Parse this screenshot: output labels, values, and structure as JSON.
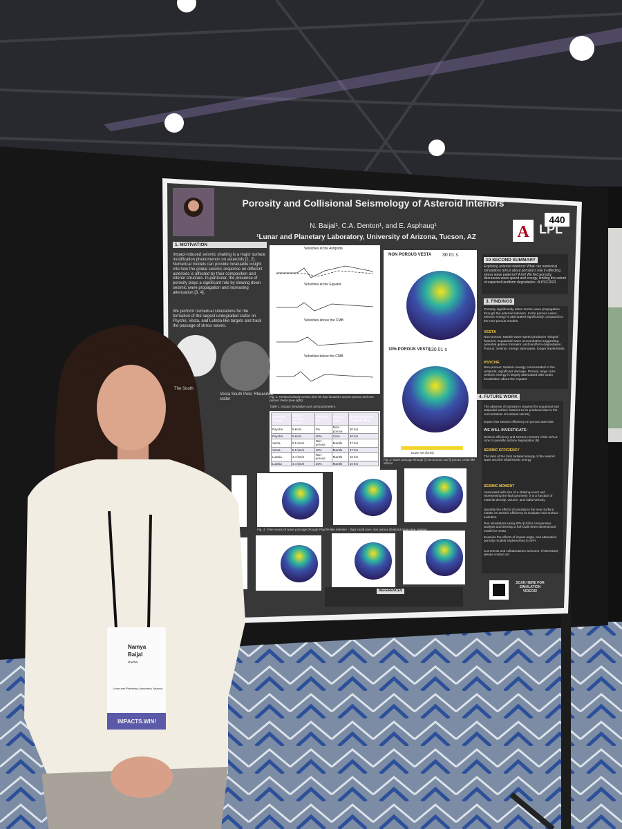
{
  "poster": {
    "number": "440",
    "title": "Porosity and Collisional Seismology of Asteroid Interiors",
    "authors": "N. Baijal¹, C.A. Denton¹, and E. Asphaug¹",
    "affiliation": "¹Lunar and Planetary Laboratory, University of Arizona, Tucson, AZ",
    "logo": "LPL",
    "motivation": {
      "heading": "1. MOTIVATION",
      "text": [
        "Impact-induced seismic shaking is a major surface modification phenomenon on asteroids [1, 2]. Numerical models can provide invaluable insight into how the global seismic response on different asteroids is affected by their composition and interior structure. In particular, the presence of porosity plays a significant role by slowing down seismic wave propagation and increasing attenuation [3, 4].",
        "We perform numerical simulations for the formation of the largest undegraded crater on Psyche, Vesta, and Lutetia-like targets and track the passage of stress waves."
      ]
    },
    "image_captions": [
      "The South",
      "Vesta South Pole: Rheasilvia crater"
    ],
    "charts": {
      "titles": [
        "Velocities at the Antipode",
        "Velocities at the Equator",
        "Velocities above the CMB",
        "Velocities below the CMB"
      ],
      "caption": "Fig. 1: Vertical velocity versus time for four locations across porous and non-porous Vesta (see right)."
    },
    "simulation": {
      "panels": [
        {
          "label": "NON POROUS VESTA",
          "time": "30.01 s"
        },
        {
          "label": "10% POROUS VESTA",
          "time": "130.01 s"
        }
      ],
      "colorbar": "Down  Vel (km/s)",
      "caption": "Fig. 2: Wave passage through (i) non-porous and ii) porous Vesta-like interior"
    },
    "table": {
      "caption": "Table 1: Impact simulation runs and parameters.",
      "header": [
        "Asteroid /Target",
        "Impact velocity (km/s)",
        "Porosity (%)",
        "Porous layer",
        "Dunite impactor diameter (km)"
      ],
      "rows": [
        [
          "Psyche",
          "5 km/s",
          "0%",
          "Non-porous",
          "30 km"
        ],
        [
          "Psyche",
          "5 km/s",
          "40%",
          "Core",
          "30 km"
        ],
        [
          "Vesta",
          "5.5 km/s",
          "Non-porous",
          "Mantle",
          "37 km"
        ],
        [
          "Vesta",
          "5.5 km/s",
          "10%",
          "Mantle",
          "37 km"
        ],
        [
          "Lutetia",
          "4.4 km/s",
          "Non-porous",
          "Mantle",
          "10 km"
        ],
        [
          "Lutetia",
          "4.4 km/s",
          "10%",
          "Mantle",
          "10 km"
        ]
      ]
    },
    "fig3_caption": "Fig. 3: Time series of wave passage through Psyche-like interiors - (top) small core, non porous (bottom) large core, porous",
    "summary": {
      "heading": "10 SECOND SUMMARY",
      "text": "Exploring asteroid interiors! What can numerical simulations tell us about porosity's role in affecting stress wave patterns? A lot! We find porosity decreases wave speed and energy, limiting the extent of expected landform degradation. #LPSC2023"
    },
    "findings": {
      "heading": "3. FINDINGS",
      "intro": "Porosity significantly alters stress wave propagation through the asteroid interiors. In the porous cases, seismic energy is attenuated significantly compared to the non-porous models.",
      "vesta_heading": "VESTA",
      "vesta": "Non-porous: Mantle wave speed produces 'winged' features. Equatorial wave accumulation suggesting potential graben formation and landform degradation. Porous: Seismic energy attenuates, longer travel-times",
      "psyche_heading": "PSYCHE",
      "psyche": "Non-porous: Seismic energy concentrated to the antipode, significant damage. Porous, large core: Seismic energy is largely attenuated with strain localization about the equator"
    },
    "future": {
      "heading": "4. FUTURE WORK",
      "points": [
        "The absence of porosity is required for equatorial and antipodal surface features to be produced due to the concentration of residual velocity",
        "Expect low seismic efficiency on porous asteroids"
      ],
      "investigate_heading": "WE WILL INVESTIGATE:",
      "investigate": "Seismic efficiency and seismic moment of the iSALE runs to quantify surface degradation [9]",
      "efficiency_heading": "SEISMIC EFFICIENCY",
      "efficiency": "The ratio of the total radiated energy of the seismic wave and the initial kinetic energy",
      "moment_heading": "SEISMIC MOMENT",
      "moment": "Associated with size of a shaking event and representing the fault geometry. It is a function of material density, volume, and radial velocity",
      "more": [
        "Quantify the effects of porosity in the near surface mantle on seismic efficiency to evaluate near-surface evolution",
        "Run simulations using SPH [10] for comparative analysis and develop a full-scale three-dimensional model for Vesta",
        "Examine the effects of impact angle, and alternative porosity models implemented in SPH",
        "Comments and collaborations welcome. If interested, please contact us!"
      ]
    },
    "references_heading": "REFERENCES",
    "qr_text": "SCAN HERE FOR SIMULATION VIDEOS!"
  },
  "badge": {
    "first_name": "Namya",
    "last_name": "Baijal",
    "pronouns": "she/her",
    "affiliation": "Lunar and Planetary Laboratory, Arizona",
    "banner": "IMPACTS.WIN!"
  }
}
